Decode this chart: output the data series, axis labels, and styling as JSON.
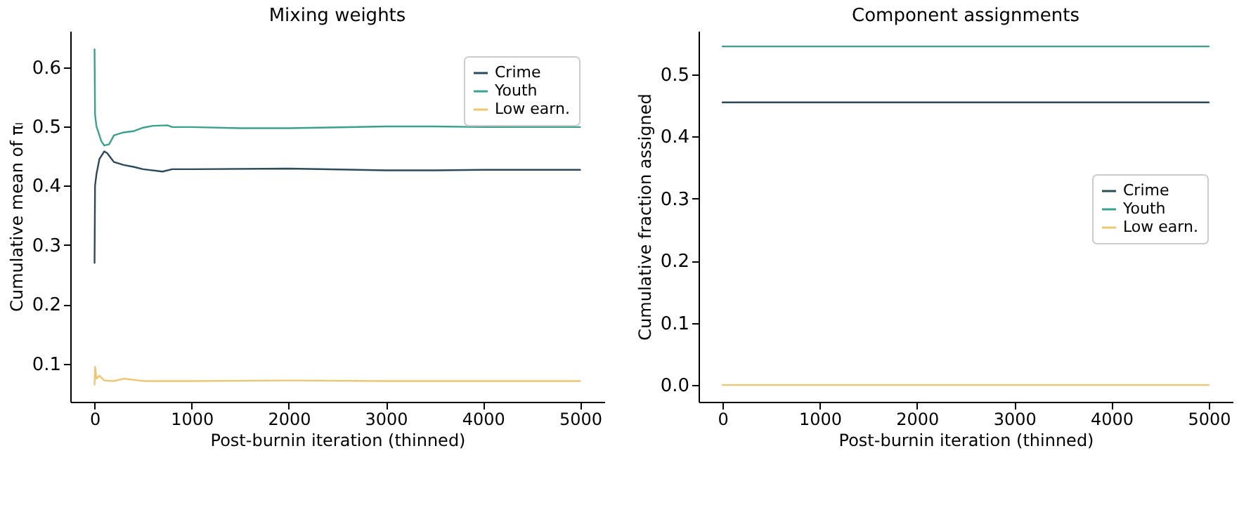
{
  "chart_data": [
    {
      "type": "line",
      "title": "Mixing weights",
      "xlabel": "Post-burnin iteration (thinned)",
      "ylabel": "Cumulative mean of πₗ",
      "xlim": [
        -250,
        5250
      ],
      "ylim": [
        0.036,
        0.661
      ],
      "xticks": [
        0,
        1000,
        2000,
        3000,
        4000,
        5000
      ],
      "yticks": [
        0.1,
        0.2,
        0.3,
        0.4,
        0.5,
        0.6
      ],
      "grid": false,
      "legend": "top right",
      "series": [
        {
          "name": "Crime",
          "color": "#2b4a5a",
          "x": [
            0,
            5,
            20,
            50,
            100,
            130,
            200,
            300,
            400,
            500,
            700,
            800,
            1000,
            2000,
            3000,
            3500,
            4000,
            5000
          ],
          "values": [
            0.27,
            0.4,
            0.42,
            0.445,
            0.458,
            0.455,
            0.44,
            0.435,
            0.432,
            0.428,
            0.424,
            0.428,
            0.428,
            0.429,
            0.426,
            0.426,
            0.427,
            0.427
          ]
        },
        {
          "name": "Youth",
          "color": "#3aa18e",
          "x": [
            0,
            5,
            20,
            40,
            70,
            100,
            150,
            200,
            300,
            400,
            500,
            600,
            750,
            800,
            1000,
            1500,
            2000,
            3000,
            3500,
            4000,
            5000
          ],
          "values": [
            0.63,
            0.52,
            0.5,
            0.49,
            0.475,
            0.468,
            0.47,
            0.485,
            0.49,
            0.492,
            0.498,
            0.501,
            0.502,
            0.499,
            0.499,
            0.497,
            0.497,
            0.5,
            0.5,
            0.499,
            0.499
          ]
        },
        {
          "name": "Low earn.",
          "color": "#f0c670",
          "x": [
            0,
            5,
            20,
            50,
            100,
            200,
            300,
            500,
            1000,
            2000,
            3000,
            5000
          ],
          "values": [
            0.065,
            0.095,
            0.075,
            0.08,
            0.072,
            0.071,
            0.075,
            0.071,
            0.071,
            0.072,
            0.071,
            0.071
          ]
        }
      ]
    },
    {
      "type": "line",
      "title": "Component assignments",
      "xlabel": "Post-burnin iteration (thinned)",
      "ylabel": "Cumulative fraction assigned",
      "xlim": [
        -246,
        5246
      ],
      "ylim": [
        -0.027,
        0.57
      ],
      "xticks": [
        0,
        1000,
        2000,
        3000,
        4000,
        5000
      ],
      "yticks": [
        {
          "value": 0,
          "label": "0.0"
        },
        0.1,
        0.2,
        0.3,
        0.4,
        0.5
      ],
      "grid": false,
      "legend": "right",
      "series": [
        {
          "name": "Crime",
          "color": "#2b4a5a",
          "x": [
            0,
            5000
          ],
          "values": [
            0.455,
            0.455
          ]
        },
        {
          "name": "Youth",
          "color": "#3aa18e",
          "x": [
            0,
            5000
          ],
          "values": [
            0.545,
            0.545
          ]
        },
        {
          "name": "Low earn.",
          "color": "#f0c670",
          "x": [
            0,
            5000
          ],
          "values": [
            0,
            0
          ]
        }
      ]
    }
  ]
}
